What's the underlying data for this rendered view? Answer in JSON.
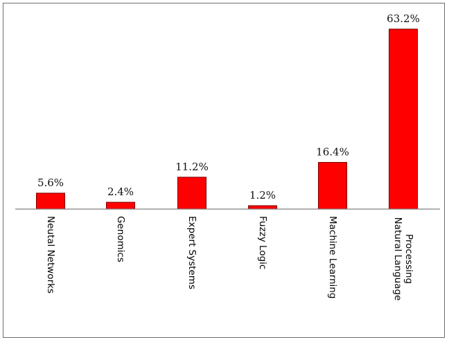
{
  "chart_data": {
    "type": "bar",
    "categories": [
      [
        "Neutal Networks"
      ],
      [
        "Genomics"
      ],
      [
        "Expert Systems"
      ],
      [
        "Fuzzy Logic"
      ],
      [
        "Machine Learning"
      ],
      [
        "Natural Language",
        "Processing"
      ]
    ],
    "values": [
      5.6,
      2.4,
      11.2,
      1.2,
      16.4,
      63.2
    ],
    "value_labels": [
      "5.6%",
      "2.4%",
      "11.2%",
      "1.2%",
      "16.4%",
      "63.2%"
    ],
    "title": "",
    "xlabel": "",
    "ylabel": "",
    "ylim": [
      0,
      63.2
    ],
    "grid": false,
    "bar_color": "#ff0000",
    "bar_edge_color": "#7a0000"
  }
}
